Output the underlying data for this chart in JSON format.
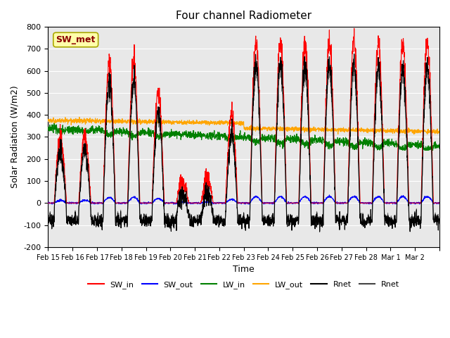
{
  "title": "Four channel Radiometer",
  "ylabel": "Solar Radiation (W/m2)",
  "xlabel": "Time",
  "ylim": [
    -200,
    800
  ],
  "xlim": [
    0,
    16
  ],
  "xtick_labels": [
    "Feb 15",
    "Feb 16",
    "Feb 17",
    "Feb 18",
    "Feb 19",
    "Feb 20",
    "Feb 21",
    "Feb 22",
    "Feb 23",
    "Feb 24",
    "Feb 25",
    "Feb 26",
    "Feb 27",
    "Feb 28",
    "Mar 1",
    "Mar 2"
  ],
  "ytick_labels": [
    "-200",
    "-100",
    "0",
    "100",
    "200",
    "300",
    "400",
    "500",
    "600",
    "700",
    "800"
  ],
  "annotation": "SW_met",
  "bg_color": "#e8e8e8",
  "legend_entries": [
    {
      "label": "SW_in",
      "color": "red",
      "lw": 1.5
    },
    {
      "label": "SW_out",
      "color": "blue",
      "lw": 1.5
    },
    {
      "label": "LW_in",
      "color": "green",
      "lw": 1.5
    },
    {
      "label": "LW_out",
      "color": "orange",
      "lw": 1.5
    },
    {
      "label": "Rnet",
      "color": "black",
      "lw": 1.5
    },
    {
      "label": "Rnet",
      "color": "#555555",
      "lw": 1.5
    }
  ]
}
